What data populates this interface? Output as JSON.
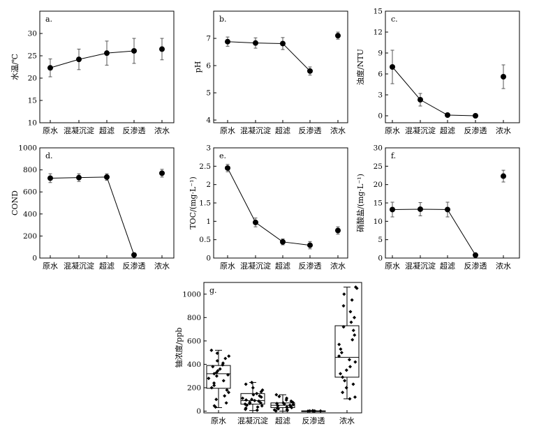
{
  "chart_data": [
    {
      "panel": "a.",
      "type": "line",
      "ylabel": "水温/℃",
      "ylim": [
        10,
        35
      ],
      "yticks": [
        10,
        15,
        20,
        25,
        30
      ],
      "categories": [
        "原水",
        "混凝沉淀",
        "超滤",
        "反渗透",
        "浓水"
      ],
      "values": [
        22.3,
        24.2,
        25.6,
        26.1,
        26.5
      ],
      "errors": [
        2.0,
        2.3,
        2.7,
        2.8,
        2.4
      ],
      "connected": [
        true,
        true,
        true,
        true,
        false
      ]
    },
    {
      "panel": "b.",
      "type": "line",
      "ylabel": "pH",
      "ylim": [
        3.9,
        8.0
      ],
      "yticks": [
        4,
        5,
        6,
        7
      ],
      "categories": [
        "原水",
        "混凝沉淀",
        "超滤",
        "反渗透",
        "浓水"
      ],
      "values": [
        6.88,
        6.83,
        6.81,
        5.8,
        7.1
      ],
      "errors": [
        0.17,
        0.19,
        0.22,
        0.15,
        0.13
      ],
      "connected": [
        true,
        true,
        true,
        true,
        false
      ]
    },
    {
      "panel": "c.",
      "type": "line",
      "ylabel": "浊度/NTU",
      "ylim": [
        -1,
        15
      ],
      "yticks": [
        0,
        3,
        6,
        9,
        12,
        15
      ],
      "categories": [
        "原水",
        "混凝沉淀",
        "超滤",
        "反渗透",
        "浓水"
      ],
      "values": [
        7.0,
        2.3,
        0.1,
        0.0,
        5.6
      ],
      "errors": [
        2.4,
        0.9,
        0.05,
        0.05,
        1.7
      ],
      "connected": [
        true,
        true,
        true,
        true,
        false
      ]
    },
    {
      "panel": "d.",
      "type": "line",
      "ylabel": "COND",
      "ylim": [
        0,
        1000
      ],
      "yticks": [
        0,
        200,
        400,
        600,
        800,
        1000
      ],
      "categories": [
        "原水",
        "混凝沉淀",
        "超滤",
        "反渗透",
        "浓水"
      ],
      "values": [
        725,
        730,
        735,
        28,
        770
      ],
      "errors": [
        40,
        35,
        30,
        3,
        35
      ],
      "connected": [
        true,
        true,
        true,
        true,
        false
      ]
    },
    {
      "panel": "e.",
      "type": "line",
      "ylabel": "TOC/(mg·L⁻¹)",
      "ylim": [
        0,
        3.0
      ],
      "yticks": [
        0,
        0.5,
        1.0,
        1.5,
        2.0,
        2.5,
        3.0
      ],
      "categories": [
        "原水",
        "混凝沉淀",
        "超滤",
        "反渗透",
        "浓水"
      ],
      "values": [
        2.45,
        0.97,
        0.44,
        0.35,
        0.75
      ],
      "errors": [
        0.1,
        0.12,
        0.08,
        0.1,
        0.1
      ],
      "connected": [
        true,
        true,
        true,
        true,
        false
      ]
    },
    {
      "panel": "f.",
      "type": "line",
      "ylabel": "硝酸盐/(mg·L⁻¹)",
      "ylim": [
        0,
        30
      ],
      "yticks": [
        0,
        5,
        10,
        15,
        20,
        25,
        30
      ],
      "categories": [
        "原水",
        "混凝沉淀",
        "超滤",
        "反渗透",
        "浓水"
      ],
      "values": [
        13.2,
        13.3,
        13.2,
        0.8,
        22.3
      ],
      "errors": [
        2.0,
        1.8,
        2.0,
        0.2,
        1.6
      ],
      "connected": [
        true,
        true,
        true,
        true,
        false
      ]
    },
    {
      "panel": "g.",
      "type": "box",
      "ylabel": "铀浓度/ppb",
      "ylim": [
        -15,
        1100
      ],
      "yticks": [
        0,
        200,
        400,
        600,
        800,
        1000
      ],
      "categories": [
        "原水",
        "混凝沉淀",
        "超滤",
        "反渗透",
        "浓水"
      ],
      "boxes": [
        {
          "q1": 195,
          "median": 320,
          "q3": 390,
          "whisker_low": 30,
          "whisker_high": 520,
          "points": [
            520,
            495,
            470,
            450,
            430,
            410,
            395,
            380,
            360,
            345,
            330,
            320,
            310,
            300,
            280,
            260,
            240,
            220,
            200,
            180,
            160,
            130,
            100,
            70,
            45,
            35
          ]
        },
        {
          "q1": 60,
          "median": 90,
          "q3": 150,
          "whisker_low": 5,
          "whisker_high": 245,
          "points": [
            245,
            230,
            200,
            180,
            165,
            150,
            140,
            130,
            120,
            110,
            100,
            95,
            90,
            85,
            75,
            70,
            65,
            60,
            50,
            45,
            35,
            25,
            15,
            8
          ]
        },
        {
          "q1": 30,
          "median": 50,
          "q3": 70,
          "whisker_low": 0,
          "whisker_high": 140,
          "points": [
            140,
            125,
            110,
            95,
            85,
            75,
            70,
            65,
            60,
            55,
            50,
            45,
            40,
            35,
            30,
            25,
            20,
            15,
            10,
            5,
            2
          ]
        },
        {
          "q1": 0,
          "median": 1,
          "q3": 2,
          "whisker_low": 0,
          "whisker_high": 3,
          "points": [
            0,
            1,
            1,
            2,
            2,
            3
          ]
        },
        {
          "q1": 290,
          "median": 460,
          "q3": 730,
          "whisker_low": 105,
          "whisker_high": 1060,
          "points": [
            1060,
            1050,
            1000,
            950,
            900,
            850,
            800,
            760,
            720,
            690,
            650,
            610,
            570,
            530,
            500,
            470,
            440,
            420,
            380,
            350,
            320,
            290,
            260,
            230,
            200,
            160,
            120,
            105
          ]
        }
      ]
    }
  ]
}
